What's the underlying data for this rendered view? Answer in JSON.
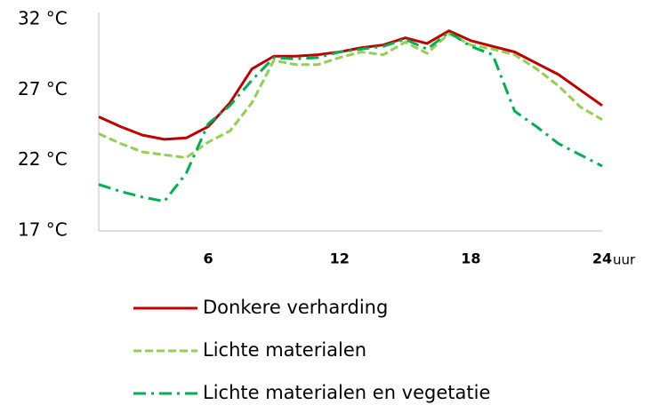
{
  "chart_data": {
    "type": "line",
    "x": [
      1,
      2,
      3,
      4,
      5,
      6,
      7,
      8,
      9,
      10,
      11,
      12,
      13,
      14,
      15,
      16,
      17,
      18,
      19,
      20,
      21,
      22,
      23,
      24
    ],
    "xlim": [
      1,
      24
    ],
    "xticks": [
      6,
      12,
      18,
      24
    ],
    "x_unit": "uur",
    "ylim": [
      17,
      32
    ],
    "yticks": [
      {
        "value": 17,
        "label": "17 °C"
      },
      {
        "value": 22,
        "label": "22 °C"
      },
      {
        "value": 27,
        "label": "27 °C"
      },
      {
        "value": 32,
        "label": "32 °C"
      }
    ],
    "grid": false,
    "series": [
      {
        "name": "Donkere verharding",
        "color": "#c00000",
        "dash": "solid",
        "values": [
          25.1,
          24.4,
          23.8,
          23.5,
          23.6,
          24.4,
          26.1,
          28.5,
          29.4,
          29.4,
          29.5,
          29.7,
          30.0,
          30.2,
          30.7,
          30.3,
          31.2,
          30.5,
          30.1,
          29.7,
          28.9,
          28.1,
          27.0,
          25.9
        ]
      },
      {
        "name": "Lichte materialen",
        "color": "#92d050",
        "dash": "dashed",
        "values": [
          23.9,
          23.2,
          22.6,
          22.4,
          22.2,
          23.3,
          24.1,
          26.1,
          29.1,
          28.8,
          28.8,
          29.3,
          29.7,
          29.5,
          30.4,
          29.6,
          31.0,
          30.2,
          29.9,
          29.5,
          28.5,
          27.3,
          25.8,
          24.9
        ]
      },
      {
        "name": "Lichte materialen en vegetatie",
        "color": "#00b050",
        "dash": "dashdot",
        "values": [
          20.3,
          19.8,
          19.4,
          19.1,
          21.1,
          24.6,
          25.9,
          27.7,
          29.3,
          29.2,
          29.3,
          29.7,
          29.9,
          30.1,
          30.6,
          29.9,
          31.1,
          30.1,
          29.5,
          25.5,
          24.4,
          23.2,
          22.4,
          21.6
        ]
      }
    ],
    "legend": "bottom"
  }
}
